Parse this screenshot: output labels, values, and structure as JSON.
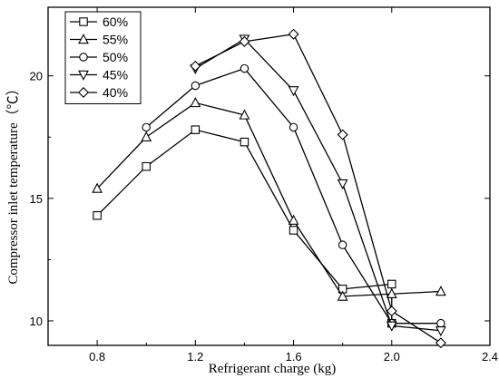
{
  "chart_data": {
    "type": "line",
    "xlabel": "Refrigerant charge (kg)",
    "ylabel": "Compressor inlet temperature（℃）",
    "xlim": [
      0.6,
      2.4
    ],
    "ylim": [
      9,
      22.8
    ],
    "xticks": [
      0.8,
      1.2,
      1.6,
      2.0,
      2.4
    ],
    "xtick_labels": [
      "0.8",
      "1.2",
      "1.6",
      "2.0",
      "2.4"
    ],
    "yticks": [
      10,
      15,
      20
    ],
    "ytick_labels": [
      "10",
      "15",
      "20"
    ],
    "legend_position": "top-left",
    "grid": false,
    "series": [
      {
        "name": "60%",
        "marker": "square",
        "x": [
          0.8,
          1.0,
          1.2,
          1.4,
          1.6,
          1.8,
          2.0,
          2.0
        ],
        "y": [
          14.3,
          16.3,
          17.8,
          17.3,
          13.7,
          11.3,
          11.5,
          9.9
        ]
      },
      {
        "name": "55%",
        "marker": "triangle-up",
        "x": [
          0.8,
          1.0,
          1.2,
          1.4,
          1.6,
          1.8,
          2.0,
          2.2
        ],
        "y": [
          15.4,
          17.5,
          18.9,
          18.4,
          14.1,
          11.0,
          11.1,
          11.2
        ]
      },
      {
        "name": "50%",
        "marker": "circle",
        "x": [
          1.0,
          1.2,
          1.4,
          1.6,
          1.8,
          2.0,
          2.2
        ],
        "y": [
          17.9,
          19.6,
          20.3,
          17.9,
          13.1,
          9.9,
          9.9
        ]
      },
      {
        "name": "45%",
        "marker": "triangle-down",
        "x": [
          1.2,
          1.4,
          1.6,
          1.8,
          2.0,
          2.2
        ],
        "y": [
          20.3,
          21.5,
          19.4,
          15.6,
          9.8,
          9.6
        ]
      },
      {
        "name": "40%",
        "marker": "diamond",
        "x": [
          1.2,
          1.4,
          1.6,
          1.8,
          2.0,
          2.2
        ],
        "y": [
          20.4,
          21.4,
          21.7,
          17.6,
          10.4,
          9.1
        ]
      }
    ]
  }
}
